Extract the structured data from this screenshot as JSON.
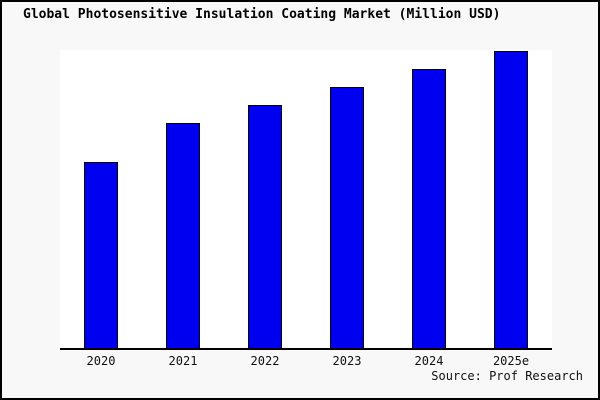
{
  "chart_data": {
    "type": "bar",
    "title": "Global Photosensitive Insulation Coating Market (Million USD)",
    "categories": [
      "2020",
      "2021",
      "2022",
      "2023",
      "2024",
      "2025e"
    ],
    "values": [
      63,
      76,
      82,
      88,
      94,
      100
    ],
    "xlabel": "",
    "ylabel": "",
    "ylim": [
      0,
      100
    ],
    "grid": false,
    "legend": false,
    "y_axis_labels_shown": false,
    "bar_color": "#0000f0",
    "bar_border_color": "#000000"
  },
  "source": "Source: Prof Research",
  "colors": {
    "page_background": "#f8f8f8",
    "plot_background": "#ffffff",
    "frame_border": "#000000",
    "axis_line": "#000000",
    "text": "#000000"
  }
}
